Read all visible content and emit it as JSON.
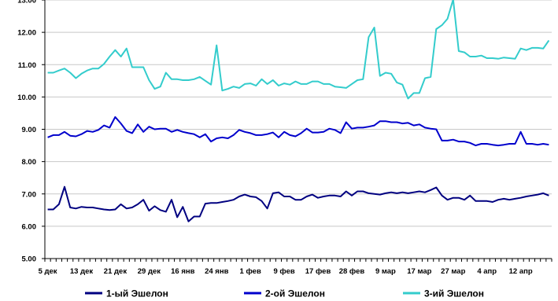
{
  "chart_data": {
    "type": "line",
    "title": "",
    "xlabel": "",
    "ylabel": "",
    "ylim": [
      5.0,
      13.0
    ],
    "y_ticks": [
      "5.00",
      "6.00",
      "7.00",
      "8.00",
      "9.00",
      "10.00",
      "11.00",
      "12.00",
      "13.00"
    ],
    "x_tick_labels": [
      "5 дек",
      "13 дек",
      "21 дек",
      "29 дек",
      "16 янв",
      "24 янв",
      "1 фев",
      "9 фев",
      "17 фев",
      "28 фев",
      "9 мар",
      "17 мар",
      "27 мар",
      "4 апр",
      "12 апр"
    ],
    "x_tick_step": 6,
    "legend_position": "bottom",
    "grid": "horizontal",
    "series": [
      {
        "name": "1-ый Эшелон",
        "color": "#000080",
        "values": [
          6.52,
          6.52,
          6.68,
          7.22,
          6.58,
          6.55,
          6.6,
          6.58,
          6.58,
          6.55,
          6.52,
          6.5,
          6.52,
          6.68,
          6.55,
          6.58,
          6.68,
          6.82,
          6.48,
          6.62,
          6.5,
          6.45,
          6.82,
          6.28,
          6.6,
          6.15,
          6.3,
          6.3,
          6.7,
          6.72,
          6.72,
          6.75,
          6.78,
          6.82,
          6.92,
          6.98,
          6.92,
          6.9,
          6.78,
          6.55,
          7.02,
          7.05,
          6.92,
          6.92,
          6.82,
          6.82,
          6.92,
          6.98,
          6.88,
          6.92,
          6.95,
          6.95,
          6.92,
          7.08,
          6.95,
          7.08,
          7.08,
          7.02,
          7.0,
          6.98,
          7.02,
          7.05,
          7.02,
          7.05,
          7.02,
          7.05,
          7.08,
          7.05,
          7.12,
          7.2,
          6.95,
          6.82,
          6.88,
          6.88,
          6.82,
          6.95,
          6.78,
          6.78,
          6.78,
          6.75,
          6.82,
          6.85,
          6.82,
          6.85,
          6.88,
          6.92,
          6.95,
          6.98,
          7.02,
          6.95
        ]
      },
      {
        "name": "2-ой Эшелон",
        "color": "#0000CC",
        "values": [
          8.75,
          8.82,
          8.82,
          8.92,
          8.8,
          8.78,
          8.85,
          8.95,
          8.92,
          8.98,
          9.12,
          9.05,
          9.38,
          9.18,
          8.95,
          8.88,
          9.15,
          8.92,
          9.08,
          9.0,
          9.02,
          9.02,
          8.92,
          8.98,
          8.92,
          8.88,
          8.85,
          8.75,
          8.85,
          8.62,
          8.72,
          8.75,
          8.72,
          8.82,
          8.98,
          8.92,
          8.88,
          8.82,
          8.82,
          8.85,
          8.9,
          8.75,
          8.92,
          8.82,
          8.78,
          8.88,
          9.02,
          8.9,
          8.9,
          8.92,
          9.02,
          8.98,
          8.88,
          9.22,
          9.02,
          9.05,
          9.05,
          9.08,
          9.12,
          9.25,
          9.25,
          9.22,
          9.22,
          9.18,
          9.2,
          9.12,
          9.15,
          9.05,
          9.02,
          9.0,
          8.65,
          8.65,
          8.68,
          8.62,
          8.62,
          8.58,
          8.5,
          8.55,
          8.55,
          8.52,
          8.5,
          8.52,
          8.55,
          8.55,
          8.92,
          8.55,
          8.55,
          8.52,
          8.55,
          8.52
        ]
      },
      {
        "name": "3-ий Эшелон",
        "color": "#33CCCC",
        "values": [
          10.75,
          10.75,
          10.82,
          10.88,
          10.75,
          10.58,
          10.72,
          10.82,
          10.88,
          10.88,
          11.02,
          11.25,
          11.45,
          11.25,
          11.5,
          10.92,
          10.92,
          10.92,
          10.52,
          10.25,
          10.32,
          10.75,
          10.55,
          10.55,
          10.52,
          10.52,
          10.55,
          10.62,
          10.5,
          10.38,
          11.6,
          10.2,
          10.25,
          10.32,
          10.28,
          10.4,
          10.42,
          10.35,
          10.55,
          10.4,
          10.52,
          10.35,
          10.42,
          10.38,
          10.48,
          10.4,
          10.4,
          10.48,
          10.48,
          10.4,
          10.4,
          10.32,
          10.3,
          10.28,
          10.4,
          10.52,
          10.55,
          11.85,
          12.15,
          10.65,
          10.75,
          10.72,
          10.45,
          10.38,
          9.95,
          10.12,
          10.12,
          10.58,
          10.62,
          12.1,
          12.22,
          12.42,
          13.02,
          11.42,
          11.38,
          11.25,
          11.25,
          11.28,
          11.2,
          11.2,
          11.18,
          11.22,
          11.2,
          11.18,
          11.5,
          11.45,
          11.52,
          11.52,
          11.5,
          11.75
        ]
      }
    ]
  }
}
